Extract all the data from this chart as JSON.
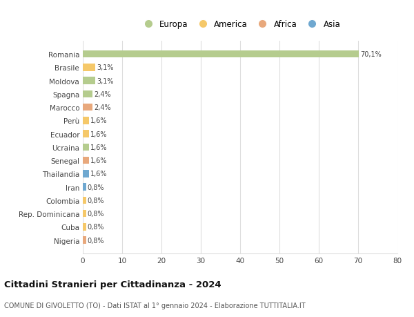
{
  "countries": [
    "Romania",
    "Brasile",
    "Moldova",
    "Spagna",
    "Marocco",
    "Perù",
    "Ecuador",
    "Ucraina",
    "Senegal",
    "Thailandia",
    "Iran",
    "Colombia",
    "Rep. Dominicana",
    "Cuba",
    "Nigeria"
  ],
  "values": [
    70.1,
    3.1,
    3.1,
    2.4,
    2.4,
    1.6,
    1.6,
    1.6,
    1.6,
    1.6,
    0.8,
    0.8,
    0.8,
    0.8,
    0.8
  ],
  "labels": [
    "70,1%",
    "3,1%",
    "3,1%",
    "2,4%",
    "2,4%",
    "1,6%",
    "1,6%",
    "1,6%",
    "1,6%",
    "1,6%",
    "0,8%",
    "0,8%",
    "0,8%",
    "0,8%",
    "0,8%"
  ],
  "continents": [
    "Europa",
    "America",
    "Europa",
    "Europa",
    "Africa",
    "America",
    "America",
    "Europa",
    "Africa",
    "Asia",
    "Asia",
    "America",
    "America",
    "America",
    "Africa"
  ],
  "continent_colors": {
    "Europa": "#b5cc8e",
    "America": "#f5c869",
    "Africa": "#e8a87c",
    "Asia": "#6fa8d0"
  },
  "legend_order": [
    "Europa",
    "America",
    "Africa",
    "Asia"
  ],
  "title": "Cittadini Stranieri per Cittadinanza - 2024",
  "subtitle": "COMUNE DI GIVOLETTO (TO) - Dati ISTAT al 1° gennaio 2024 - Elaborazione TUTTITALIA.IT",
  "xlim": [
    0,
    80
  ],
  "xticks": [
    0,
    10,
    20,
    30,
    40,
    50,
    60,
    70,
    80
  ],
  "bar_height": 0.55,
  "background_color": "#ffffff",
  "grid_color": "#dddddd",
  "figsize": [
    6.0,
    4.6
  ],
  "dpi": 100
}
